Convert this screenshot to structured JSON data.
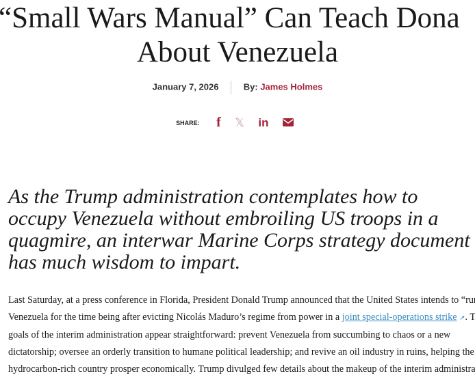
{
  "article": {
    "title_line1": "“Small Wars Manual” Can Teach Dona",
    "title_line2": "About Venezuela",
    "date": "January 7, 2026",
    "by_label": "By:",
    "author": "James Holmes",
    "share_label": "SHARE:",
    "share_icons": [
      "facebook-icon",
      "x-icon",
      "linkedin-icon",
      "email-icon"
    ],
    "lede": "As the Trump administration contemplates how to occupy Venezuela without embroiling US troops in a quagmire, an interwar Marine Corps strategy document has much wisdom to impart.",
    "body_lines": [
      "Last Saturday, at a press conference in Florida, President Donald Trump announced that the United States intends to “run”",
      "Venezuela for the time being after evicting Nicolás Maduro’s regime from power in a ",
      "goals of the interim administration appear straightforward: prevent Venezuela from succumbing to chaos or a new",
      "dictatorship; oversee an orderly transition to humane political leadership; and revive an oil industry in ruins, helping the",
      "hydrocarbon-rich country prosper economically. Trump divulged few details about the makeup of the interim administration"
    ],
    "link_text": "joint special-operations strike",
    "line2_tail": ". The",
    "accent_color": "#a3233b",
    "link_color": "#3a8fc4"
  }
}
